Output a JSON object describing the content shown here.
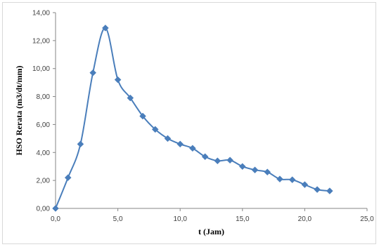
{
  "chart_data": {
    "type": "line",
    "xlabel": "t (Jam)",
    "ylabel": "HSO Rerata (m3/dt/mm)",
    "xlim": [
      0,
      25
    ],
    "ylim": [
      0,
      14
    ],
    "x_ticks": [
      "0,0",
      "5,0",
      "10,0",
      "15,0",
      "20,0",
      "25,0"
    ],
    "y_ticks": [
      "0,00",
      "2,00",
      "4,00",
      "6,00",
      "8,00",
      "10,00",
      "12,00",
      "14,00"
    ],
    "grid": false,
    "legend": "none",
    "series_color": "#4a7ebb",
    "marker": "diamond",
    "smooth": true,
    "x": [
      0,
      1,
      2,
      3,
      4,
      5,
      6,
      7,
      8,
      9,
      10,
      11,
      12,
      13,
      14,
      15,
      16,
      17,
      18,
      19,
      20,
      21,
      22
    ],
    "y": [
      0.0,
      2.2,
      4.6,
      9.7,
      12.9,
      9.2,
      7.9,
      6.6,
      5.65,
      5.0,
      4.6,
      4.3,
      3.7,
      3.4,
      3.45,
      3.0,
      2.75,
      2.6,
      2.1,
      2.05,
      1.7,
      1.35,
      1.25
    ]
  }
}
